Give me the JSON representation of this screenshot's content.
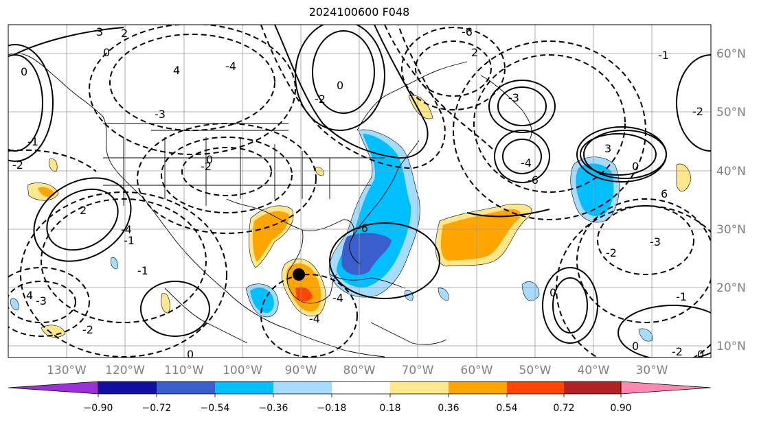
{
  "title": "2024100600 F048",
  "map": {
    "projection": "PlateCarree",
    "lon_range": [
      -140,
      -20
    ],
    "lat_range": [
      8,
      65
    ],
    "lon_labels": [
      "130°W",
      "120°W",
      "110°W",
      "100°W",
      "90°W",
      "80°W",
      "70°W",
      "60°W",
      "50°W",
      "40°W",
      "30°W"
    ],
    "lat_labels": [
      "60°N",
      "50°N",
      "40°N",
      "30°N",
      "20°N",
      "10°N"
    ],
    "gridlines": true,
    "field_contours": "solid positive / dashed negative",
    "contour_labels": [
      "3",
      "2",
      "0",
      "-6",
      "4",
      "-4",
      "-2",
      "-3",
      "-3",
      "-6",
      "-4",
      "3",
      "6",
      "-3",
      "-2",
      "2",
      "-4",
      "-4",
      "-6",
      "-4",
      "-2",
      "4",
      "-3",
      "-2",
      "-1",
      "0",
      "0",
      "0",
      "0",
      "-1",
      "-2",
      "-2",
      "-1",
      "2",
      "-2",
      "0",
      "0",
      "-1",
      "-1",
      "0",
      "0"
    ]
  },
  "colorbar": {
    "tick_labels": [
      "−0.90",
      "−0.72",
      "−0.54",
      "−0.36",
      "−0.18",
      "0.18",
      "0.36",
      "0.54",
      "0.72",
      "0.90"
    ],
    "colors": [
      "#9b30d9",
      "#1010a0",
      "#3a5fcd",
      "#00bfff",
      "#a6dcff",
      "#ffffff",
      "#ffe88c",
      "#ffa500",
      "#ff4500",
      "#b22222",
      "#ff88b0"
    ],
    "extend": "both"
  },
  "marker": {
    "symbol": "filled-circle",
    "color": "#000000"
  }
}
